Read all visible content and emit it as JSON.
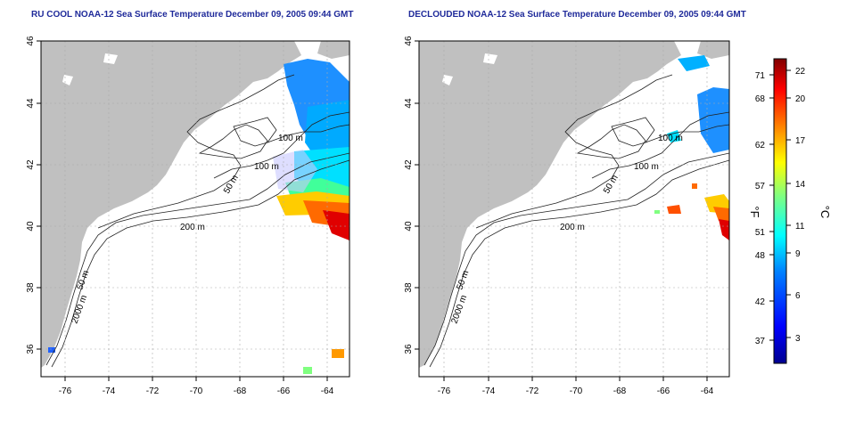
{
  "left_panel": {
    "title": "RU COOL NOAA-12 Sea Surface Temperature December 09, 2005 09:44 GMT",
    "contour_labels": [
      "100 m",
      "100 m",
      "50 m",
      "200 m",
      "50 m",
      "2000 m"
    ]
  },
  "right_panel": {
    "title": "DECLOUDED NOAA-12 Sea Surface Temperature December 09, 2005 09:44 GMT",
    "contour_labels": [
      "100 m",
      "100 m",
      "50 m",
      "200 m",
      "50 m",
      "2000 m"
    ]
  },
  "x_ticks": [
    "-76",
    "-74",
    "-72",
    "-70",
    "-68",
    "-66",
    "-64"
  ],
  "y_ticks": [
    "36",
    "38",
    "40",
    "42",
    "44",
    "46"
  ],
  "colorbar": {
    "fahrenheit_label": "°F",
    "celsius_label": "°C",
    "fahrenheit_ticks": [
      "71",
      "68",
      "62",
      "57",
      "51",
      "48",
      "42",
      "37"
    ],
    "celsius_ticks": [
      "22",
      "20",
      "17",
      "14",
      "11",
      "9",
      "6",
      "3"
    ],
    "colors": [
      "#00008f",
      "#0000ff",
      "#0080ff",
      "#00ffff",
      "#80ff80",
      "#ffff00",
      "#ff8000",
      "#ff0000",
      "#800000"
    ]
  },
  "colors": {
    "land": "#c0c0c0",
    "ocean": "#ffffff",
    "title": "#1f2a9a",
    "contour": "#222222"
  }
}
